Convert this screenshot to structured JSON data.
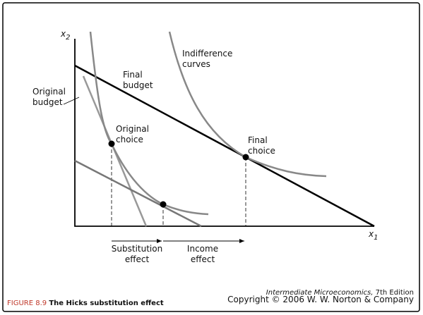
{
  "axes": {
    "y_label": "x",
    "y_sub": "2",
    "x_label": "x",
    "x_sub": "1"
  },
  "labels": {
    "indifference_curves": [
      "Indifference",
      "curves"
    ],
    "final_budget": [
      "Final",
      "budget"
    ],
    "original_budget": [
      "Original",
      "budget"
    ],
    "original_choice": [
      "Original",
      "choice"
    ],
    "final_choice": [
      "Final",
      "choice"
    ],
    "substitution_effect": [
      "Substitution",
      "effect"
    ],
    "income_effect": [
      "Income",
      "effect"
    ]
  },
  "caption": {
    "number": "FIGURE 8.9",
    "title": "The Hicks substitution effect"
  },
  "credit": {
    "book": "Intermediate Microeconomics,",
    "edition": " 7th Edition",
    "copyright": "Copyright © 2006 W. W. Norton & Company"
  }
}
